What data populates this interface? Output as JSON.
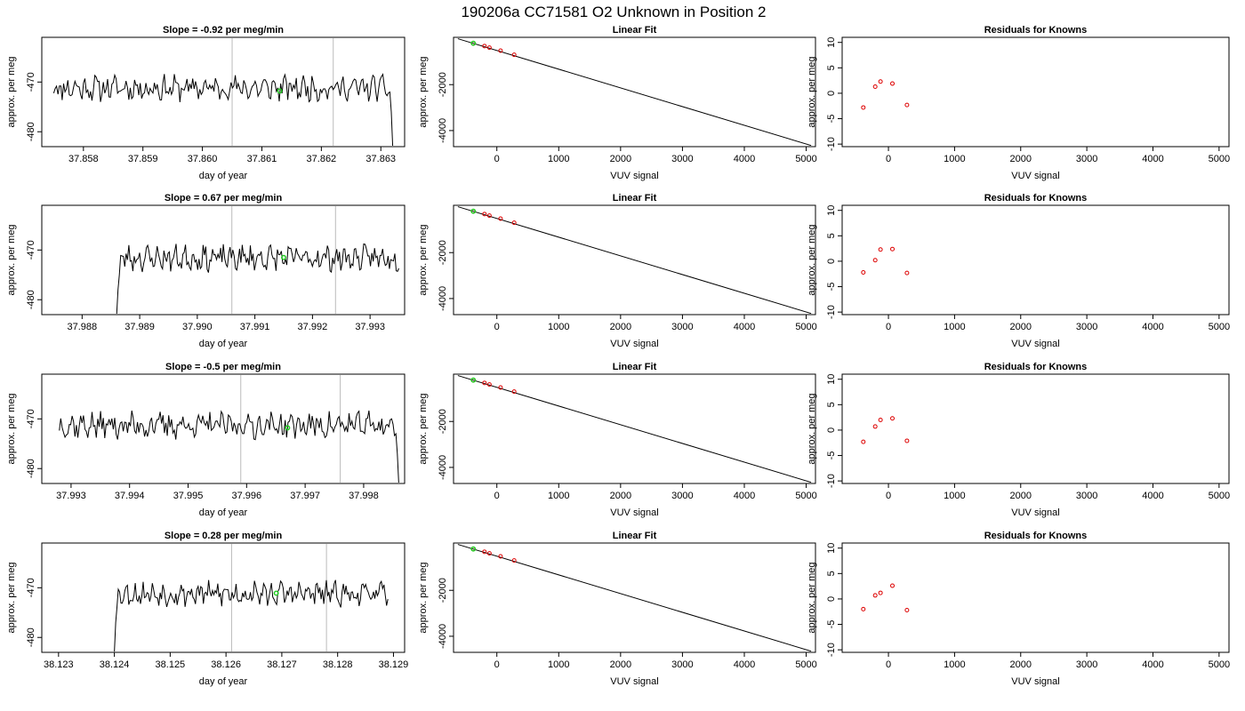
{
  "page_title": "190206a      CC71581    O2 Unknown in Position  2",
  "colors": {
    "trace": "#000000",
    "cursor_lines": "#bbbbbb",
    "marker_green": "#22cc22",
    "marker_red": "#dd0000",
    "axes": "#000000"
  },
  "chart_data": [
    {
      "type": "line",
      "title": "Slope =  -0.92  per meg/min",
      "xlabel": "day of year",
      "ylabel": "approx. per meg",
      "xlim": [
        37.8573,
        37.8634
      ],
      "ylim": [
        -483,
        -461
      ],
      "xticks": [
        "37.858",
        "37.859",
        "37.860",
        "37.861",
        "37.862",
        "37.863"
      ],
      "xtick_values": [
        37.858,
        37.859,
        37.86,
        37.861,
        37.862,
        37.863
      ],
      "yticks": [
        "-470",
        "-480"
      ],
      "ytick_values": [
        -470,
        -480
      ],
      "vlines": [
        37.8605,
        37.8622
      ],
      "trace": {
        "x_start": 37.8575,
        "x_end": 37.8632,
        "n": 240,
        "seed": 11,
        "mean": -471.2,
        "amp": 2.0,
        "head": [],
        "tail": [
          -472,
          -476,
          -483
        ]
      },
      "highlight_point": {
        "x": 37.8613,
        "y": -471.8
      }
    },
    {
      "type": "scatter",
      "title": "Linear Fit",
      "xlabel": "VUV signal",
      "ylabel": "approx. per meg",
      "xlim": [
        -700,
        5150
      ],
      "ylim": [
        -4700,
        60
      ],
      "xticks": [
        "0",
        "1000",
        "2000",
        "3000",
        "4000",
        "5000"
      ],
      "xtick_values": [
        0,
        1000,
        2000,
        3000,
        4000,
        5000
      ],
      "yticks": [
        "-2000",
        "-4000"
      ],
      "ytick_values": [
        -2000,
        -4000
      ],
      "fit_line": [
        [
          -630,
          0
        ],
        [
          5080,
          -4650
        ]
      ],
      "points": [
        [
          -380,
          -200
        ],
        [
          -200,
          -320
        ],
        [
          -120,
          -390
        ],
        [
          60,
          -520
        ],
        [
          280,
          -700
        ]
      ],
      "highlight_point": {
        "x": -380,
        "y": -200
      }
    },
    {
      "type": "scatter",
      "title": "Residuals for Knowns",
      "xlabel": "VUV signal",
      "ylabel": "approx. per meg",
      "xlim": [
        -700,
        5150
      ],
      "ylim": [
        -10.5,
        11
      ],
      "xticks": [
        "0",
        "1000",
        "2000",
        "3000",
        "4000",
        "5000"
      ],
      "xtick_values": [
        0,
        1000,
        2000,
        3000,
        4000,
        5000
      ],
      "yticks": [
        "-10",
        "-5",
        "0",
        "5",
        "10"
      ],
      "ytick_values": [
        -10,
        -5,
        0,
        5,
        10
      ],
      "points": [
        [
          -380,
          -2.8
        ],
        [
          -200,
          1.3
        ],
        [
          -120,
          2.3
        ],
        [
          60,
          1.9
        ],
        [
          280,
          -2.3
        ]
      ]
    },
    {
      "type": "line",
      "title": "Slope =  0.67  per meg/min",
      "xlabel": "day of year",
      "ylabel": "approx. per meg",
      "xlim": [
        37.9873,
        37.9936
      ],
      "ylim": [
        -483,
        -461
      ],
      "xticks": [
        "37.988",
        "37.989",
        "37.990",
        "37.991",
        "37.992",
        "37.993"
      ],
      "xtick_values": [
        37.988,
        37.989,
        37.99,
        37.991,
        37.992,
        37.993
      ],
      "yticks": [
        "-470",
        "-480"
      ],
      "ytick_values": [
        -470,
        -480
      ],
      "vlines": [
        37.9906,
        37.9924
      ],
      "trace": {
        "x_start": 37.9886,
        "x_end": 37.9935,
        "n": 210,
        "seed": 23,
        "mean": -471.6,
        "amp": 2.0,
        "head": [
          -483,
          -478,
          -475
        ],
        "tail": []
      },
      "highlight_point": {
        "x": 37.9915,
        "y": -471.5
      }
    },
    {
      "type": "scatter",
      "title": "Linear Fit",
      "xlabel": "VUV signal",
      "ylabel": "approx. per meg",
      "xlim": [
        -700,
        5150
      ],
      "ylim": [
        -4700,
        60
      ],
      "xticks": [
        "0",
        "1000",
        "2000",
        "3000",
        "4000",
        "5000"
      ],
      "xtick_values": [
        0,
        1000,
        2000,
        3000,
        4000,
        5000
      ],
      "yticks": [
        "-2000",
        "-4000"
      ],
      "ytick_values": [
        -2000,
        -4000
      ],
      "fit_line": [
        [
          -630,
          0
        ],
        [
          5080,
          -4650
        ]
      ],
      "points": [
        [
          -380,
          -200
        ],
        [
          -200,
          -320
        ],
        [
          -120,
          -390
        ],
        [
          60,
          -520
        ],
        [
          280,
          -700
        ]
      ],
      "highlight_point": {
        "x": -380,
        "y": -200
      }
    },
    {
      "type": "scatter",
      "title": "Residuals for Knowns",
      "xlabel": "VUV signal",
      "ylabel": "approx. per meg",
      "xlim": [
        -700,
        5150
      ],
      "ylim": [
        -10.5,
        11
      ],
      "xticks": [
        "0",
        "1000",
        "2000",
        "3000",
        "4000",
        "5000"
      ],
      "xtick_values": [
        0,
        1000,
        2000,
        3000,
        4000,
        5000
      ],
      "yticks": [
        "-10",
        "-5",
        "0",
        "5",
        "10"
      ],
      "ytick_values": [
        -10,
        -5,
        0,
        5,
        10
      ],
      "points": [
        [
          -380,
          -2.2
        ],
        [
          -200,
          0.2
        ],
        [
          -120,
          2.3
        ],
        [
          60,
          2.4
        ],
        [
          280,
          -2.3
        ]
      ]
    },
    {
      "type": "line",
      "title": "Slope =  -0.5  per meg/min",
      "xlabel": "day of year",
      "ylabel": "approx. per meg",
      "xlim": [
        37.9925,
        37.9987
      ],
      "ylim": [
        -483,
        -461
      ],
      "xticks": [
        "37.993",
        "37.994",
        "37.995",
        "37.996",
        "37.997",
        "37.998"
      ],
      "xtick_values": [
        37.993,
        37.994,
        37.995,
        37.996,
        37.997,
        37.998
      ],
      "yticks": [
        "-470",
        "-480"
      ],
      "ytick_values": [
        -470,
        -480
      ],
      "vlines": [
        37.9959,
        37.9976
      ],
      "trace": {
        "x_start": 37.9928,
        "x_end": 37.9986,
        "n": 240,
        "seed": 37,
        "mean": -471.3,
        "amp": 2.1,
        "head": [],
        "tail": [
          -473,
          -477,
          -483
        ]
      },
      "highlight_point": {
        "x": 37.9967,
        "y": -471.8
      }
    },
    {
      "type": "scatter",
      "title": "Linear Fit",
      "xlabel": "VUV signal",
      "ylabel": "approx. per meg",
      "xlim": [
        -700,
        5150
      ],
      "ylim": [
        -4700,
        60
      ],
      "xticks": [
        "0",
        "1000",
        "2000",
        "3000",
        "4000",
        "5000"
      ],
      "xtick_values": [
        0,
        1000,
        2000,
        3000,
        4000,
        5000
      ],
      "yticks": [
        "-2000",
        "-4000"
      ],
      "ytick_values": [
        -2000,
        -4000
      ],
      "fit_line": [
        [
          -630,
          0
        ],
        [
          5080,
          -4650
        ]
      ],
      "points": [
        [
          -380,
          -200
        ],
        [
          -200,
          -320
        ],
        [
          -120,
          -390
        ],
        [
          60,
          -520
        ],
        [
          280,
          -700
        ]
      ],
      "highlight_point": {
        "x": -380,
        "y": -200
      }
    },
    {
      "type": "scatter",
      "title": "Residuals for Knowns",
      "xlabel": "VUV signal",
      "ylabel": "approx. per meg",
      "xlim": [
        -700,
        5150
      ],
      "ylim": [
        -10.5,
        11
      ],
      "xticks": [
        "0",
        "1000",
        "2000",
        "3000",
        "4000",
        "5000"
      ],
      "xtick_values": [
        0,
        1000,
        2000,
        3000,
        4000,
        5000
      ],
      "yticks": [
        "-10",
        "-5",
        "0",
        "5",
        "10"
      ],
      "ytick_values": [
        -10,
        -5,
        0,
        5,
        10
      ],
      "points": [
        [
          -380,
          -2.3
        ],
        [
          -200,
          0.7
        ],
        [
          -120,
          2.0
        ],
        [
          60,
          2.3
        ],
        [
          280,
          -2.1
        ]
      ]
    },
    {
      "type": "line",
      "title": "Slope =  0.28  per meg/min",
      "xlabel": "day of year",
      "ylabel": "approx. per meg",
      "xlim": [
        38.1227,
        38.1292
      ],
      "ylim": [
        -483,
        -461
      ],
      "xticks": [
        "38.123",
        "38.124",
        "38.125",
        "38.126",
        "38.127",
        "38.128",
        "38.129"
      ],
      "xtick_values": [
        38.123,
        38.124,
        38.125,
        38.126,
        38.127,
        38.128,
        38.129
      ],
      "yticks": [
        "-470",
        "-480"
      ],
      "ytick_values": [
        -470,
        -480
      ],
      "vlines": [
        38.1261,
        38.1278
      ],
      "trace": {
        "x_start": 38.124,
        "x_end": 38.1289,
        "n": 210,
        "seed": 53,
        "mean": -471.2,
        "amp": 1.9,
        "head": [
          -483,
          -477,
          -474
        ],
        "tail": []
      },
      "highlight_point": {
        "x": 38.1269,
        "y": -471.1
      }
    },
    {
      "type": "scatter",
      "title": "Linear Fit",
      "xlabel": "VUV signal",
      "ylabel": "approx. per meg",
      "xlim": [
        -700,
        5150
      ],
      "ylim": [
        -4700,
        60
      ],
      "xticks": [
        "0",
        "1000",
        "2000",
        "3000",
        "4000",
        "5000"
      ],
      "xtick_values": [
        0,
        1000,
        2000,
        3000,
        4000,
        5000
      ],
      "yticks": [
        "-2000",
        "-4000"
      ],
      "ytick_values": [
        -2000,
        -4000
      ],
      "fit_line": [
        [
          -630,
          0
        ],
        [
          5080,
          -4650
        ]
      ],
      "points": [
        [
          -380,
          -200
        ],
        [
          -200,
          -320
        ],
        [
          -120,
          -390
        ],
        [
          60,
          -520
        ],
        [
          280,
          -700
        ]
      ],
      "highlight_point": {
        "x": -380,
        "y": -200
      }
    },
    {
      "type": "scatter",
      "title": "Residuals for Knowns",
      "xlabel": "VUV signal",
      "ylabel": "approx. per meg",
      "xlim": [
        -700,
        5150
      ],
      "ylim": [
        -10.5,
        11
      ],
      "xticks": [
        "0",
        "1000",
        "2000",
        "3000",
        "4000",
        "5000"
      ],
      "xtick_values": [
        0,
        1000,
        2000,
        3000,
        4000,
        5000
      ],
      "yticks": [
        "-10",
        "-5",
        "0",
        "5",
        "10"
      ],
      "ytick_values": [
        -10,
        -5,
        0,
        5,
        10
      ],
      "points": [
        [
          -380,
          -2.0
        ],
        [
          -200,
          0.7
        ],
        [
          -120,
          1.2
        ],
        [
          60,
          2.6
        ],
        [
          280,
          -2.2
        ]
      ]
    }
  ]
}
